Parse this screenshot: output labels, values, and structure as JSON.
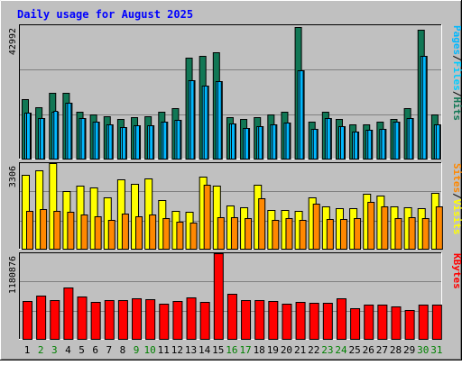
{
  "chart_data": {
    "type": "bar",
    "title": "Daily usage for August 2025",
    "categories": [
      "1",
      "2",
      "3",
      "4",
      "5",
      "6",
      "7",
      "8",
      "9",
      "10",
      "11",
      "12",
      "13",
      "14",
      "15",
      "16",
      "17",
      "18",
      "19",
      "20",
      "21",
      "22",
      "23",
      "24",
      "25",
      "26",
      "27",
      "28",
      "29",
      "30",
      "31"
    ],
    "weekend_days": [
      "2",
      "3",
      "9",
      "10",
      "16",
      "17",
      "23",
      "24",
      "30",
      "31"
    ],
    "panels": [
      {
        "id": "hits-files-pages",
        "max_label": "42992",
        "ylim": [
          0,
          42992
        ],
        "axis_label_parts": [
          "Pages",
          "/",
          "Files",
          "/",
          "Hits"
        ],
        "series": [
          {
            "name": "Hits",
            "color": "#117755",
            "values": [
              19200,
              16500,
              21100,
              21100,
              15200,
              14200,
              13600,
              12900,
              13300,
              13600,
              15200,
              16200,
              32600,
              33200,
              34200,
              13300,
              12900,
              13300,
              14200,
              15200,
              42300,
              12000,
              15200,
              12900,
              11000,
              11000,
              12000,
              12900,
              16200,
              41400,
              14200
            ]
          },
          {
            "name": "Files",
            "color": "#00ccff",
            "values": [
              14900,
              13000,
              15000,
              17900,
              13000,
              12000,
              11000,
              10200,
              10800,
              10800,
              12000,
              12500,
              25300,
              23500,
              25000,
              11300,
              9900,
              10600,
              11000,
              11500,
              28400,
              9600,
              13000,
              10600,
              8600,
              9300,
              9700,
              12000,
              13000,
              33200,
              11000
            ]
          },
          {
            "name": "Pages",
            "color": "#00b8ff",
            "values": [
              14900,
              13000,
              15500,
              17900,
              13000,
              12000,
              11000,
              10200,
              10800,
              10800,
              12000,
              12500,
              25300,
              23500,
              25000,
              11300,
              9900,
              10600,
              11000,
              11500,
              28400,
              9600,
              13000,
              10600,
              8600,
              9300,
              9700,
              12000,
              13000,
              33200,
              11000
            ]
          }
        ]
      },
      {
        "id": "visits-sites",
        "max_label": "3306",
        "ylim": [
          0,
          3306
        ],
        "axis_label_parts": [
          "Sites",
          "/",
          "Visits"
        ],
        "series": [
          {
            "name": "Visits",
            "color": "#ffff00",
            "values": [
              2860,
              3040,
              3306,
              2230,
              2420,
              2350,
              1990,
              2670,
              2520,
              2700,
              1870,
              1450,
              1410,
              2790,
              2420,
              1670,
              1600,
              2470,
              1500,
              1480,
              1450,
              1970,
              1630,
              1560,
              1550,
              2120,
              2040,
              1620,
              1600,
              1580,
              2160
            ]
          },
          {
            "name": "Sites",
            "color": "#ff8800",
            "values": [
              1450,
              1520,
              1470,
              1430,
              1330,
              1260,
              1130,
              1370,
              1260,
              1310,
              1190,
              1030,
              1020,
              2480,
              1230,
              1220,
              1200,
              1950,
              1120,
              1180,
              1130,
              1750,
              1150,
              1150,
              1170,
              1810,
              1650,
              1170,
              1230,
              1170,
              1630
            ]
          }
        ]
      },
      {
        "id": "kbytes",
        "max_label": "1180876",
        "ylim": [
          0,
          1180876
        ],
        "axis_label_parts": [
          "KBytes"
        ],
        "series": [
          {
            "name": "KBytes",
            "color": "#ff0000",
            "values": [
              527000,
              592000,
              536000,
              711000,
              579000,
              508000,
              536000,
              537000,
              561000,
              551000,
              484000,
              528000,
              568000,
              508000,
              1180876,
              625000,
              537000,
              533000,
              524000,
              483000,
              509000,
              491000,
              491000,
              555000,
              418000,
              478000,
              470000,
              451000,
              398000,
              468000,
              470000
            ]
          }
        ]
      }
    ],
    "colors": {
      "background": "#c0c0c0",
      "title": "#0000ff",
      "day_label": "#000000",
      "weekend_day_label": "#008000",
      "hits": "#117755",
      "files": "#00ccff",
      "pages": "#00b8ff",
      "visits": "#ffff00",
      "sites": "#ff8800",
      "kbytes": "#ff0000"
    }
  }
}
